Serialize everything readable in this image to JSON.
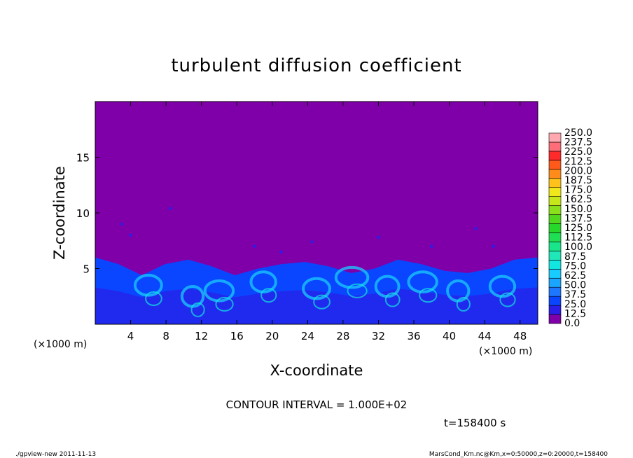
{
  "chart_data": {
    "type": "heatmap",
    "title": "turbulent diffusion coefficient",
    "xlabel": "X-coordinate",
    "ylabel": "Z-coordinate",
    "x_unit": "(×1000 m)",
    "z_unit": "(×1000 m)",
    "xlim": [
      0,
      50
    ],
    "ylim": [
      0,
      20
    ],
    "x_ticks": [
      4,
      8,
      12,
      16,
      20,
      24,
      28,
      32,
      36,
      40,
      44,
      48
    ],
    "y_ticks": [
      5,
      10,
      15
    ],
    "colorbar": {
      "levels": [
        "0.0",
        "12.5",
        "25.0",
        "37.5",
        "50.0",
        "62.5",
        "75.0",
        "87.5",
        "100.0",
        "112.5",
        "125.0",
        "137.5",
        "150.0",
        "162.5",
        "175.0",
        "187.5",
        "200.0",
        "212.5",
        "225.0",
        "237.5",
        "250.0"
      ],
      "colors": [
        "#7f00a8",
        "#2a1ee8",
        "#0a46ff",
        "#1e78ff",
        "#1aa6ff",
        "#19ccff",
        "#11e6e0",
        "#1fe8b8",
        "#19e68a",
        "#1fe055",
        "#26d82a",
        "#4fd81e",
        "#8ae01a",
        "#c6e81a",
        "#f0e81a",
        "#ffc21a",
        "#ff8c1a",
        "#ff5a1a",
        "#ff2a2a",
        "#ff6e78",
        "#ffa8b0"
      ]
    },
    "field_description_values": {
      "boundary_layer_top_km": [
        6.0,
        5.4,
        4.4,
        5.4,
        5.8,
        5.2,
        4.4,
        5.0,
        5.4,
        5.6,
        5.2,
        4.6,
        5.0,
        5.8,
        5.4,
        4.8,
        4.6,
        5.0,
        5.8,
        6.0
      ]
    }
  },
  "annotations": {
    "contour_interval": "CONTOUR INTERVAL = 1.000E+02",
    "time": "t=158400 s"
  },
  "footer": {
    "left": "./gpview-new   2011-11-13",
    "right": "MarsCond_Km.nc@Km,x=0:50000,z=0:20000,t=158400"
  }
}
